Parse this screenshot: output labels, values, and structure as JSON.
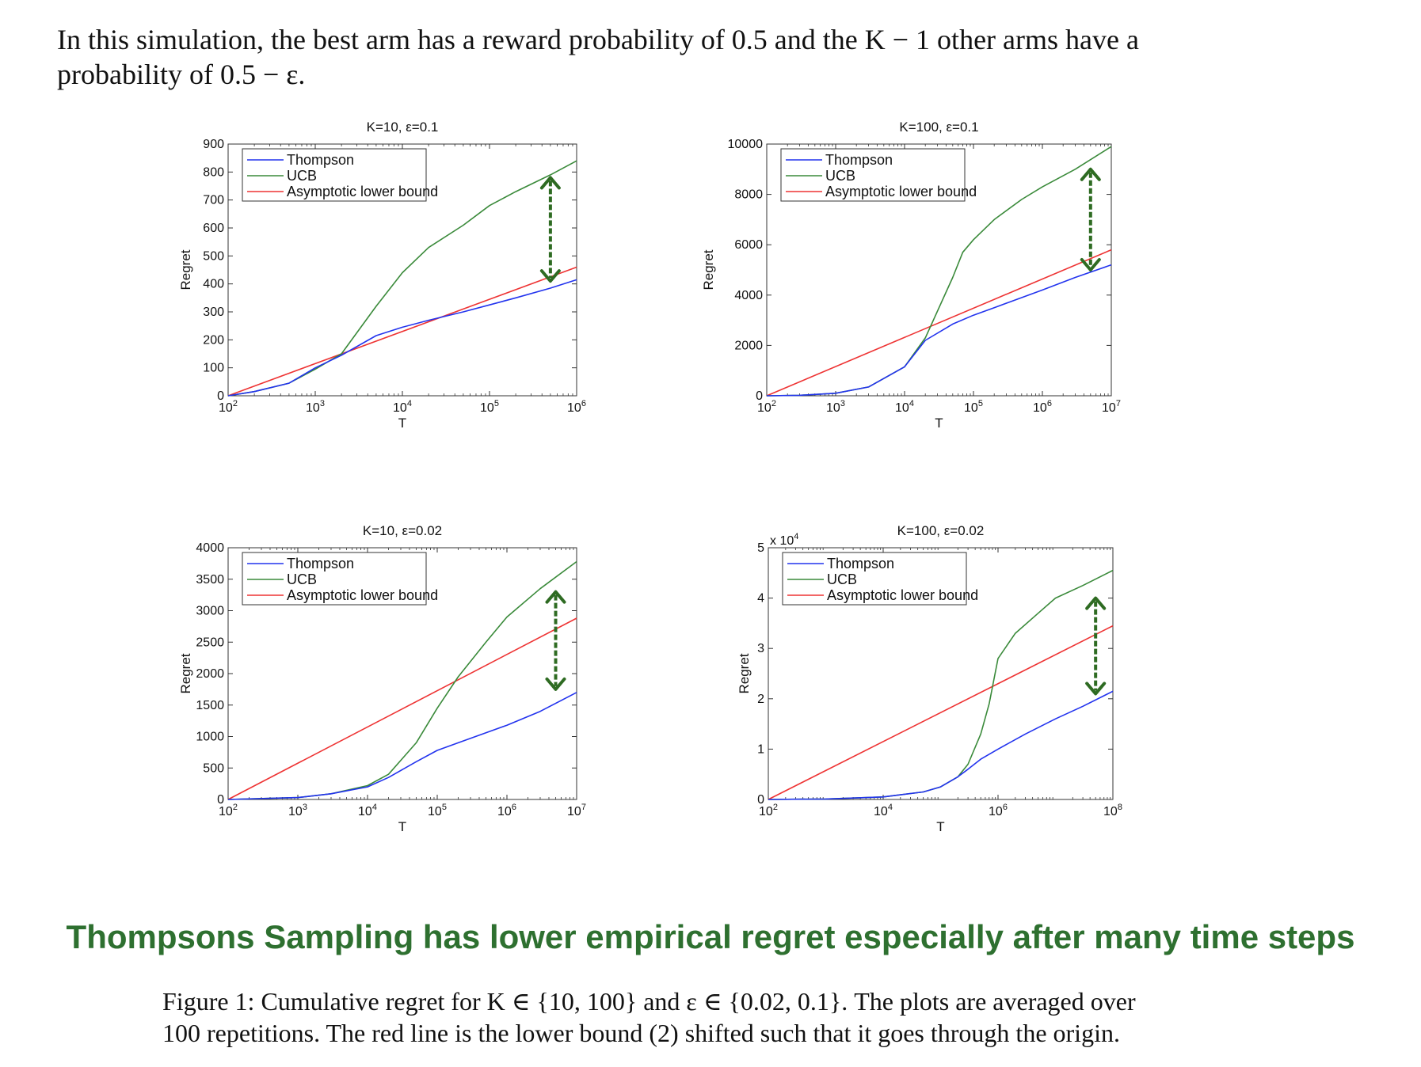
{
  "intro": {
    "line1": "In this simulation, the best arm has a reward probability of 0.5 and the K − 1 other arms have a",
    "line2": "probability of 0.5 − ε."
  },
  "takeaway": "Thompsons Sampling has lower empirical regret especially after many time steps",
  "caption": {
    "line1": "Figure 1: Cumulative regret for K ∈ {10, 100} and ε ∈ {0.02, 0.1}. The plots are averaged over",
    "line2": "100 repetitions. The red line is the lower bound (2) shifted such that it goes through the origin."
  },
  "colors": {
    "thompson": "#2233ee",
    "ucb": "#3a8a3a",
    "bound": "#ee3333",
    "arrow": "#2e6b22",
    "takeaway": "#2e7030"
  },
  "chart_data": [
    {
      "type": "line",
      "title": "K=10, ε=0.1",
      "xlabel": "T",
      "ylabel": "Regret",
      "xscale": "log",
      "xlim": [
        100,
        1000000
      ],
      "ylim": [
        0,
        900
      ],
      "x_ticks": [
        {
          "e": "2"
        },
        {
          "e": "3"
        },
        {
          "e": "4"
        },
        {
          "e": "5"
        },
        {
          "e": "6"
        }
      ],
      "y_ticks": [
        "0",
        "100",
        "200",
        "300",
        "400",
        "500",
        "600",
        "700",
        "800",
        "900"
      ],
      "y_tick_values": [
        0,
        100,
        200,
        300,
        400,
        500,
        600,
        700,
        800,
        900
      ],
      "multiplier": "",
      "legend": [
        "Thompson",
        "UCB",
        "Asymptotic lower bound"
      ],
      "arrow": {
        "x": 500000,
        "y_top": 780,
        "y_bottom": 410
      },
      "series": [
        {
          "name": "Thompson",
          "x": [
            100,
            200,
            500,
            1000,
            2000,
            5000,
            10000,
            20000,
            50000,
            100000,
            200000,
            500000,
            1000000
          ],
          "y": [
            0,
            15,
            45,
            100,
            145,
            215,
            245,
            270,
            300,
            325,
            350,
            385,
            415
          ]
        },
        {
          "name": "UCB",
          "x": [
            100,
            200,
            500,
            1000,
            2000,
            5000,
            10000,
            20000,
            50000,
            100000,
            200000,
            500000,
            1000000
          ],
          "y": [
            0,
            15,
            45,
            95,
            150,
            320,
            440,
            530,
            610,
            680,
            730,
            790,
            840
          ]
        },
        {
          "name": "Asymptotic lower bound",
          "x": [
            100,
            1000000
          ],
          "y": [
            0,
            460
          ]
        }
      ]
    },
    {
      "type": "line",
      "title": "K=100, ε=0.1",
      "xlabel": "T",
      "ylabel": "Regret",
      "xscale": "log",
      "xlim": [
        100,
        10000000
      ],
      "ylim": [
        0,
        10000
      ],
      "x_ticks": [
        {
          "e": "2"
        },
        {
          "e": "3"
        },
        {
          "e": "4"
        },
        {
          "e": "5"
        },
        {
          "e": "6"
        },
        {
          "e": "7"
        }
      ],
      "y_ticks": [
        "0",
        "2000",
        "4000",
        "6000",
        "8000",
        "10000"
      ],
      "y_tick_values": [
        0,
        2000,
        4000,
        6000,
        8000,
        10000
      ],
      "multiplier": "",
      "legend": [
        "Thompson",
        "UCB",
        "Asymptotic lower bound"
      ],
      "arrow": {
        "x": 5000000,
        "y_top": 9000,
        "y_bottom": 5000
      },
      "series": [
        {
          "name": "Thompson",
          "x": [
            100,
            300,
            1000,
            3000,
            10000,
            20000,
            50000,
            100000,
            200000,
            500000,
            1000000,
            3000000,
            10000000
          ],
          "y": [
            0,
            20,
            100,
            350,
            1150,
            2200,
            2850,
            3200,
            3500,
            3900,
            4200,
            4700,
            5200
          ]
        },
        {
          "name": "UCB",
          "x": [
            100,
            300,
            1000,
            3000,
            10000,
            20000,
            50000,
            70000,
            100000,
            200000,
            500000,
            1000000,
            3000000,
            10000000
          ],
          "y": [
            0,
            20,
            100,
            350,
            1150,
            2300,
            4700,
            5700,
            6200,
            7000,
            7800,
            8300,
            9000,
            9900
          ]
        },
        {
          "name": "Asymptotic lower bound",
          "x": [
            100,
            10000000
          ],
          "y": [
            0,
            5800
          ]
        }
      ]
    },
    {
      "type": "line",
      "title": "K=10, ε=0.02",
      "xlabel": "T",
      "ylabel": "Regret",
      "xscale": "log",
      "xlim": [
        100,
        10000000
      ],
      "ylim": [
        0,
        4000
      ],
      "x_ticks": [
        {
          "e": "2"
        },
        {
          "e": "3"
        },
        {
          "e": "4"
        },
        {
          "e": "5"
        },
        {
          "e": "6"
        },
        {
          "e": "7"
        }
      ],
      "y_ticks": [
        "0",
        "500",
        "1000",
        "1500",
        "2000",
        "2500",
        "3000",
        "3500",
        "4000"
      ],
      "y_tick_values": [
        0,
        500,
        1000,
        1500,
        2000,
        2500,
        3000,
        3500,
        4000
      ],
      "multiplier": "",
      "legend": [
        "Thompson",
        "UCB",
        "Asymptotic lower bound"
      ],
      "arrow": {
        "x": 5000000,
        "y_top": 3300,
        "y_bottom": 1750
      },
      "series": [
        {
          "name": "Thompson",
          "x": [
            100,
            1000,
            3000,
            10000,
            20000,
            50000,
            100000,
            200000,
            500000,
            1000000,
            3000000,
            10000000
          ],
          "y": [
            0,
            30,
            90,
            200,
            350,
            600,
            780,
            900,
            1060,
            1180,
            1400,
            1700
          ]
        },
        {
          "name": "UCB",
          "x": [
            100,
            1000,
            3000,
            10000,
            20000,
            50000,
            100000,
            200000,
            500000,
            1000000,
            3000000,
            10000000
          ],
          "y": [
            0,
            30,
            90,
            220,
            400,
            900,
            1450,
            1950,
            2500,
            2900,
            3350,
            3780
          ]
        },
        {
          "name": "Asymptotic lower bound",
          "x": [
            100,
            10000000
          ],
          "y": [
            0,
            2880
          ]
        }
      ]
    },
    {
      "type": "line",
      "title": "K=100, ε=0.02",
      "xlabel": "T",
      "ylabel": "Regret",
      "xscale": "log",
      "xlim": [
        100,
        100000000
      ],
      "ylim": [
        0,
        5
      ],
      "x_ticks": [
        {
          "e": "2"
        },
        {
          "e": "4"
        },
        {
          "e": "6"
        },
        {
          "e": "8"
        }
      ],
      "x_tick_values": [
        100,
        10000,
        1000000,
        100000000
      ],
      "y_ticks": [
        "0",
        "1",
        "2",
        "3",
        "4",
        "5"
      ],
      "y_tick_values": [
        0,
        1,
        2,
        3,
        4,
        5
      ],
      "multiplier": "x 10",
      "multiplier_exp": "4",
      "legend": [
        "Thompson",
        "UCB",
        "Asymptotic lower bound"
      ],
      "arrow": {
        "x": 50000000,
        "y_top": 4.0,
        "y_bottom": 2.1
      },
      "series": [
        {
          "name": "Thompson",
          "x": [
            100,
            1000,
            10000,
            50000,
            100000,
            200000,
            300000,
            500000,
            1000000,
            3000000,
            10000000,
            30000000,
            100000000
          ],
          "y": [
            0,
            0.01,
            0.05,
            0.15,
            0.25,
            0.45,
            0.6,
            0.8,
            1.0,
            1.3,
            1.6,
            1.85,
            2.15
          ]
        },
        {
          "name": "UCB",
          "x": [
            100,
            1000,
            10000,
            50000,
            100000,
            200000,
            300000,
            500000,
            700000,
            1000000,
            2000000,
            5000000,
            10000000,
            30000000,
            100000000
          ],
          "y": [
            0,
            0.01,
            0.05,
            0.15,
            0.25,
            0.45,
            0.7,
            1.3,
            1.9,
            2.8,
            3.3,
            3.7,
            4.0,
            4.25,
            4.55
          ]
        },
        {
          "name": "Asymptotic lower bound",
          "x": [
            100,
            100000000
          ],
          "y": [
            0,
            3.45
          ]
        }
      ]
    }
  ]
}
